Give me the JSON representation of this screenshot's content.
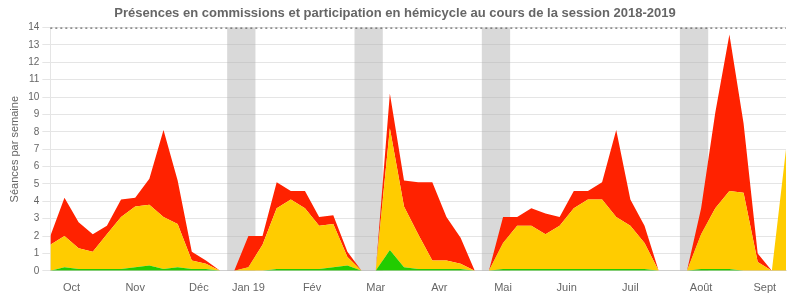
{
  "chart_data": {
    "type": "area",
    "title": "Présences en commissions et participation en hémicycle au cours de la session 2018-2019",
    "y_label": "Séances par semaine",
    "stacked": true,
    "grid": true,
    "x": [
      0,
      1,
      2,
      3,
      4,
      5,
      6,
      7,
      8,
      9,
      10,
      11,
      12,
      13,
      14,
      15,
      16,
      17,
      18,
      19,
      20,
      21,
      22,
      23,
      24,
      25,
      26,
      27,
      28,
      29,
      30,
      31,
      32,
      33,
      34,
      35,
      36,
      37,
      38,
      39,
      40,
      41,
      42,
      43,
      44,
      45,
      46,
      47,
      48,
      49,
      50,
      51,
      52
    ],
    "xlim": [
      0,
      52
    ],
    "xticks": [
      {
        "value": 1.5,
        "label": "Oct"
      },
      {
        "value": 6.0,
        "label": "Nov"
      },
      {
        "value": 10.5,
        "label": "Déc"
      },
      {
        "value": 14.0,
        "label": "Jan 19"
      },
      {
        "value": 18.5,
        "label": "Fév"
      },
      {
        "value": 23.0,
        "label": "Mar"
      },
      {
        "value": 27.5,
        "label": "Avr"
      },
      {
        "value": 32.0,
        "label": "Mai"
      },
      {
        "value": 36.5,
        "label": "Juin"
      },
      {
        "value": 41.0,
        "label": "Juil"
      },
      {
        "value": 46.0,
        "label": "Août"
      },
      {
        "value": 50.5,
        "label": "Sept"
      }
    ],
    "ylim": [
      0,
      14
    ],
    "yticks": [
      0,
      1,
      2,
      3,
      4,
      5,
      6,
      7,
      8,
      9,
      10,
      11,
      12,
      13,
      14
    ],
    "bands": [
      {
        "from": 12.5,
        "to": 14.5,
        "color": "#aaaaaa"
      },
      {
        "from": 21.5,
        "to": 23.5,
        "color": "#aaaaaa"
      },
      {
        "from": 30.5,
        "to": 32.5,
        "color": "#aaaaaa"
      },
      {
        "from": 44.5,
        "to": 46.5,
        "color": "#aaaaaa"
      }
    ],
    "hlines": [
      {
        "y": 14,
        "color": "#444444",
        "line_style": "dotted"
      }
    ],
    "series": [
      {
        "color": "#22cc00",
        "values": [
          0.0,
          0.2,
          0.1,
          0.1,
          0.1,
          0.1,
          0.2,
          0.3,
          0.1,
          0.2,
          0.1,
          0.1,
          0.0,
          0.0,
          0.0,
          0.0,
          0.1,
          0.1,
          0.1,
          0.1,
          0.2,
          0.3,
          0.0,
          0.0,
          1.2,
          0.2,
          0.1,
          0.1,
          0.1,
          0.1,
          0.0,
          0.0,
          0.1,
          0.1,
          0.1,
          0.1,
          0.1,
          0.1,
          0.1,
          0.1,
          0.1,
          0.1,
          0.1,
          0.0,
          0.0,
          0.0,
          0.1,
          0.1,
          0.1,
          0.0,
          0.0,
          0.0,
          0.0
        ]
      },
      {
        "color": "#ffcc00",
        "values": [
          1.5,
          1.8,
          1.2,
          1.0,
          2.0,
          3.0,
          3.5,
          3.5,
          3.0,
          2.5,
          0.5,
          0.3,
          0.0,
          0.0,
          0.2,
          1.5,
          3.5,
          4.0,
          3.5,
          2.5,
          2.5,
          0.5,
          0.0,
          0.0,
          7.0,
          3.5,
          2.0,
          0.5,
          0.5,
          0.3,
          0.0,
          0.0,
          1.5,
          2.5,
          2.5,
          2.0,
          2.5,
          3.5,
          4.0,
          4.0,
          3.0,
          2.5,
          1.5,
          0.0,
          0.0,
          0.0,
          2.0,
          3.5,
          4.5,
          4.5,
          0.5,
          0.0,
          7.0
        ]
      },
      {
        "color": "#ff2200",
        "values": [
          0.5,
          2.2,
          1.5,
          1.0,
          0.5,
          1.0,
          0.5,
          1.5,
          5.0,
          2.5,
          0.5,
          0.2,
          0.0,
          0.0,
          1.8,
          0.5,
          1.5,
          0.5,
          1.0,
          0.5,
          0.5,
          0.3,
          0.0,
          0.0,
          2.0,
          1.5,
          3.0,
          4.5,
          2.5,
          1.5,
          0.0,
          0.0,
          1.5,
          0.5,
          1.0,
          1.2,
          0.5,
          1.0,
          0.5,
          1.0,
          5.0,
          1.5,
          1.0,
          0.0,
          0.0,
          0.0,
          1.5,
          5.5,
          9.0,
          4.0,
          0.5,
          0.0,
          0.0
        ]
      }
    ]
  }
}
